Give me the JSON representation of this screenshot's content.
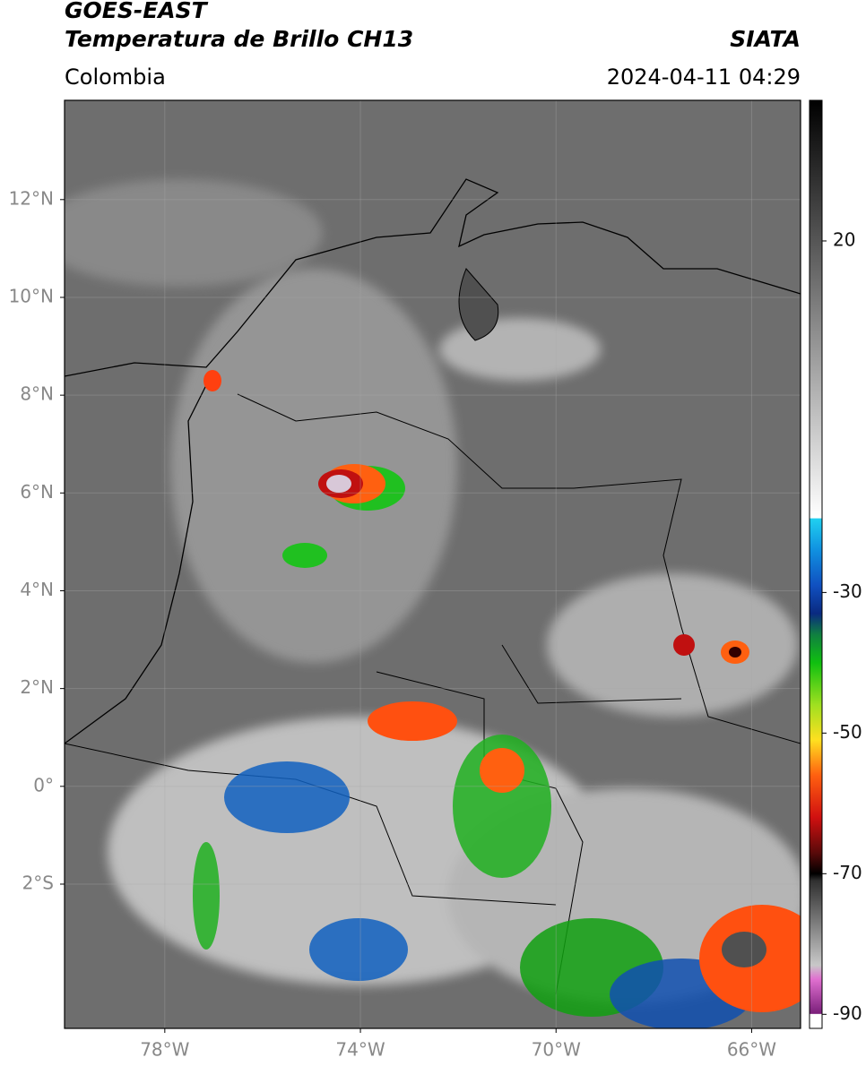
{
  "header": {
    "title": "GOES-EAST",
    "subtitle": "Temperatura de Brillo CH13",
    "source": "SIATA",
    "region": "Colombia",
    "datetime": "2024-04-11 04:29"
  },
  "map": {
    "lonlim": [
      -80.05,
      -65
    ],
    "latlim": [
      -4.95,
      14.03
    ],
    "grid": true,
    "lonticks": [
      {
        "value": -78,
        "label": "78°W"
      },
      {
        "value": -74,
        "label": "74°W"
      },
      {
        "value": -70,
        "label": "70°W"
      },
      {
        "value": -66,
        "label": "66°W"
      }
    ],
    "latticks": [
      {
        "value": 12,
        "label": "12°N"
      },
      {
        "value": 10,
        "label": "10°N"
      },
      {
        "value": 8,
        "label": "8°N"
      },
      {
        "value": 6,
        "label": "6°N"
      },
      {
        "value": 4,
        "label": "4°N"
      },
      {
        "value": 2,
        "label": "2°N"
      },
      {
        "value": 0,
        "label": "0°"
      },
      {
        "value": -2,
        "label": "2°S"
      }
    ]
  },
  "colorbar": {
    "lim": [
      -92,
      40
    ],
    "ticks": [
      20,
      -30,
      -50,
      -70,
      -90
    ],
    "colormap": [
      [
        -92,
        "#ffffff"
      ],
      [
        -90,
        "#ffffff"
      ],
      [
        -89.9,
        "#7a1f7a"
      ],
      [
        -85,
        "#e070d0"
      ],
      [
        -83,
        "#c8c8c8"
      ],
      [
        -71,
        "#303030"
      ],
      [
        -70,
        "#000000"
      ],
      [
        -67,
        "#5a0a0a"
      ],
      [
        -62,
        "#d01010"
      ],
      [
        -56,
        "#ff6010"
      ],
      [
        -51,
        "#ffe020"
      ],
      [
        -46,
        "#a0e020"
      ],
      [
        -40,
        "#10c010"
      ],
      [
        -36,
        "#108040"
      ],
      [
        -33,
        "#0a2a80"
      ],
      [
        -29,
        "#1050c0"
      ],
      [
        -24,
        "#1090e0"
      ],
      [
        -19.5,
        "#20d0f0"
      ],
      [
        -19.4,
        "#ffffff"
      ],
      [
        40,
        "#000000"
      ]
    ]
  }
}
